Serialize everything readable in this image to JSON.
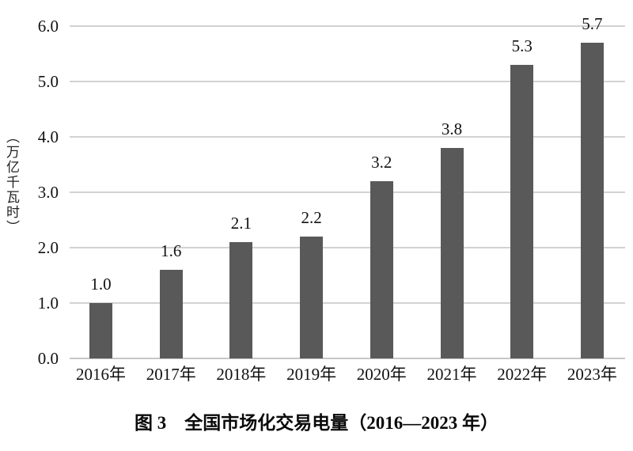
{
  "chart_data": {
    "type": "bar",
    "categories": [
      "2016年",
      "2017年",
      "2018年",
      "2019年",
      "2020年",
      "2021年",
      "2022年",
      "2023年"
    ],
    "values": [
      1.0,
      1.6,
      2.1,
      2.2,
      3.2,
      3.8,
      5.3,
      5.7
    ],
    "bar_labels": [
      "1.0",
      "1.6",
      "2.1",
      "2.2",
      "3.2",
      "3.8",
      "5.3",
      "5.7"
    ],
    "title": "图 3　全国市场化交易电量（2016—2023 年）",
    "ylabel": "（万亿千瓦时）",
    "xlabel": "",
    "ylim": [
      0.0,
      6.0
    ],
    "yticks": [
      0.0,
      1.0,
      2.0,
      3.0,
      4.0,
      5.0,
      6.0
    ],
    "ytick_labels": [
      "0.0",
      "1.0",
      "2.0",
      "3.0",
      "4.0",
      "5.0",
      "6.0"
    ],
    "grid": true,
    "legend_position": "none",
    "colors": {
      "bar": "#595959",
      "gridline": "#d2d2d2",
      "axis_line": "#c6c6c6",
      "text": "#111111",
      "background": "#ffffff"
    }
  }
}
